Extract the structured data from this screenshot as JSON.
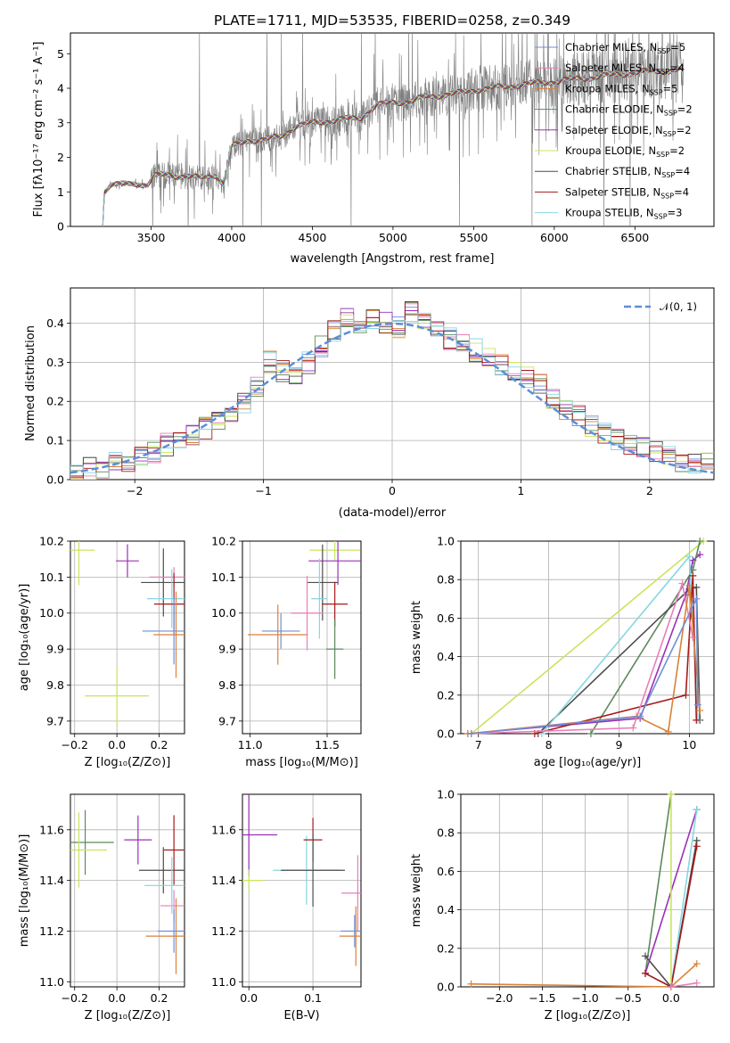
{
  "colors": {
    "chabrier_miles": "#6f8fd8",
    "salpeter_miles": "#e87fba",
    "kroupa_miles": "#d9823a",
    "chabrier_elodie": "#5b8a5b",
    "salpeter_elodie": "#9b30b8",
    "kroupa_elodie": "#c8e55e",
    "chabrier_stelib": "#4d4d4d",
    "salpeter_stelib": "#a51a1a",
    "kroupa_stelib": "#86d6e2",
    "data": "#808080",
    "normal": "#5b8fd8"
  },
  "chart_data": [
    {
      "name": "spectrum",
      "type": "line",
      "title": "PLATE=1711, MJD=53535, FIBERID=0258, z=0.349",
      "xlabel": "wavelength [Angstrom, rest frame]",
      "ylabel": "Flux [fλ10⁻¹⁷ erg cm⁻² s⁻¹ A⁻¹]",
      "xlim": [
        3000,
        6990
      ],
      "ylim": [
        0,
        5.6
      ],
      "xticks": [
        "3500",
        "4000",
        "4500",
        "5000",
        "5500",
        "6000",
        "6500"
      ],
      "yticks": [
        "0",
        "1",
        "2",
        "3",
        "4",
        "5"
      ],
      "legend": [
        {
          "key": "chabrier_miles",
          "label": "Chabrier MILES, N",
          "sub": "SSP",
          "tail": "=5"
        },
        {
          "key": "salpeter_miles",
          "label": "Salpeter MILES, N",
          "sub": "SSP",
          "tail": "=4"
        },
        {
          "key": "kroupa_miles",
          "label": "Kroupa MILES, N",
          "sub": "SSP",
          "tail": "=5"
        },
        {
          "key": "chabrier_elodie",
          "label": "Chabrier ELODIE, N",
          "sub": "SSP",
          "tail": "=2"
        },
        {
          "key": "salpeter_elodie",
          "label": "Salpeter ELODIE, N",
          "sub": "SSP",
          "tail": "=2"
        },
        {
          "key": "kroupa_elodie",
          "label": "Kroupa ELODIE, N",
          "sub": "SSP",
          "tail": "=2"
        },
        {
          "key": "chabrier_stelib",
          "label": "Chabrier STELIB, N",
          "sub": "SSP",
          "tail": "=4"
        },
        {
          "key": "salpeter_stelib",
          "label": "Salpeter STELIB, N",
          "sub": "SSP",
          "tail": "=4"
        },
        {
          "key": "kroupa_stelib",
          "label": "Kroupa STELIB, N",
          "sub": "SSP",
          "tail": "=3"
        }
      ],
      "model_continuum": [
        [
          3200,
          0
        ],
        [
          3210,
          1.0
        ],
        [
          3250,
          1.2
        ],
        [
          3300,
          1.2
        ],
        [
          3400,
          1.25
        ],
        [
          3480,
          1.2
        ],
        [
          3520,
          1.45
        ],
        [
          3600,
          1.5
        ],
        [
          3700,
          1.45
        ],
        [
          3800,
          1.4
        ],
        [
          3900,
          1.5
        ],
        [
          3950,
          1.2
        ],
        [
          4000,
          2.3
        ],
        [
          4100,
          2.5
        ],
        [
          4200,
          2.5
        ],
        [
          4300,
          2.6
        ],
        [
          4400,
          2.9
        ],
        [
          4500,
          3.0
        ],
        [
          4600,
          3.05
        ],
        [
          4700,
          3.1
        ],
        [
          4800,
          3.15
        ],
        [
          4900,
          3.5
        ],
        [
          5000,
          3.6
        ],
        [
          5100,
          3.6
        ],
        [
          5200,
          3.75
        ],
        [
          5300,
          3.8
        ],
        [
          5400,
          3.85
        ],
        [
          5500,
          3.95
        ],
        [
          5600,
          4.0
        ],
        [
          5700,
          4.05
        ],
        [
          5800,
          4.1
        ],
        [
          5900,
          4.15
        ],
        [
          6000,
          4.2
        ],
        [
          6100,
          4.25
        ],
        [
          6200,
          4.3
        ],
        [
          6300,
          4.35
        ],
        [
          6400,
          4.4
        ],
        [
          6500,
          4.45
        ],
        [
          6600,
          4.5
        ],
        [
          6700,
          4.5
        ],
        [
          6800,
          4.55
        ]
      ]
    },
    {
      "name": "residuals",
      "type": "line",
      "xlabel": "(data-model)/error",
      "ylabel": "Normed distribution",
      "xlim": [
        -2.5,
        2.5
      ],
      "ylim": [
        0,
        0.49
      ],
      "xticks": [
        "−2",
        "−1",
        "0",
        "1",
        "2"
      ],
      "yticks": [
        "0.0",
        "0.1",
        "0.2",
        "0.3",
        "0.4"
      ],
      "legend": "𝒩(0, 1)",
      "bin_edges": [
        -2.5,
        -2.4,
        -2.3,
        -2.2,
        -2.1,
        -2.0,
        -1.9,
        -1.8,
        -1.7,
        -1.6,
        -1.5,
        -1.4,
        -1.3,
        -1.2,
        -1.1,
        -1.0,
        -0.9,
        -0.8,
        -0.7,
        -0.6,
        -0.5,
        -0.4,
        -0.3,
        -0.2,
        -0.1,
        0.0,
        0.1,
        0.2,
        0.3,
        0.4,
        0.5,
        0.6,
        0.7,
        0.8,
        0.9,
        1.0,
        1.1,
        1.2,
        1.3,
        1.4,
        1.5,
        1.6,
        1.7,
        1.8,
        1.9,
        2.0,
        2.1,
        2.2,
        2.3,
        2.4,
        2.5
      ],
      "hist_base": [
        0.02,
        0.03,
        0.03,
        0.04,
        0.05,
        0.06,
        0.07,
        0.09,
        0.1,
        0.11,
        0.13,
        0.15,
        0.17,
        0.2,
        0.24,
        0.3,
        0.28,
        0.27,
        0.3,
        0.34,
        0.38,
        0.42,
        0.39,
        0.41,
        0.4,
        0.39,
        0.43,
        0.41,
        0.38,
        0.36,
        0.35,
        0.33,
        0.31,
        0.29,
        0.28,
        0.26,
        0.24,
        0.21,
        0.18,
        0.16,
        0.14,
        0.12,
        0.1,
        0.09,
        0.08,
        0.07,
        0.06,
        0.05,
        0.04,
        0.04
      ]
    },
    {
      "name": "age-vs-Z",
      "type": "scatter",
      "xlabel": "Z [log₁₀(Z/Z⊙)]",
      "ylabel": "age  [log₁₀(age/yr)]",
      "xlim": [
        -0.22,
        0.32
      ],
      "ylim": [
        9.665,
        10.2
      ],
      "xticks": [
        "−0.2",
        "0.0",
        "0.2"
      ],
      "yticks": [
        "9.7",
        "9.8",
        "9.9",
        "10.0",
        "10.1",
        "10.2"
      ],
      "points": [
        {
          "key": "kroupa_elodie",
          "x": -0.18,
          "y": 10.175
        },
        {
          "key": "kroupa_elodie",
          "x": 0.0,
          "y": 9.77
        },
        {
          "key": "salpeter_elodie",
          "x": 0.05,
          "y": 10.145
        },
        {
          "key": "chabrier_stelib",
          "x": 0.22,
          "y": 10.085
        },
        {
          "key": "salpeter_miles",
          "x": 0.27,
          "y": 10.1
        },
        {
          "key": "kroupa_stelib",
          "x": 0.26,
          "y": 10.04
        },
        {
          "key": "salpeter_stelib",
          "x": 0.27,
          "y": 10.025
        },
        {
          "key": "chabrier_miles",
          "x": 0.27,
          "y": 9.95
        },
        {
          "key": "kroupa_miles",
          "x": 0.28,
          "y": 9.94
        }
      ]
    },
    {
      "name": "age-vs-mass",
      "type": "scatter",
      "xlabel": "mass [log₁₀(M/M⊙)]",
      "xlim": [
        10.95,
        11.72
      ],
      "ylim": [
        9.665,
        10.2
      ],
      "xticks": [
        "11.0",
        "11.5"
      ],
      "yticks": [
        "9.7",
        "9.8",
        "9.9",
        "10.0",
        "10.1",
        "10.2"
      ],
      "points": [
        {
          "key": "kroupa_elodie",
          "x": 11.55,
          "y": 10.175
        },
        {
          "key": "salpeter_elodie",
          "x": 11.57,
          "y": 10.145
        },
        {
          "key": "chabrier_stelib",
          "x": 11.47,
          "y": 10.085
        },
        {
          "key": "kroupa_stelib",
          "x": 11.45,
          "y": 10.04
        },
        {
          "key": "salpeter_stelib",
          "x": 11.55,
          "y": 10.025
        },
        {
          "key": "chabrier_miles",
          "x": 11.2,
          "y": 9.95
        },
        {
          "key": "kroupa_miles",
          "x": 11.18,
          "y": 9.94
        },
        {
          "key": "salpeter_miles",
          "x": 11.37,
          "y": 10.0
        },
        {
          "key": "chabrier_elodie",
          "x": 11.55,
          "y": 9.9
        }
      ]
    },
    {
      "name": "weight-vs-age",
      "type": "line",
      "xlabel": "age  [log₁₀(age/yr)]",
      "ylabel": "mass weight",
      "xlim": [
        6.75,
        10.35
      ],
      "ylim": [
        0,
        1
      ],
      "xticks": [
        "7",
        "8",
        "9",
        "10"
      ],
      "yticks": [
        "0.0",
        "0.2",
        "0.4",
        "0.6",
        "0.8",
        "1.0"
      ],
      "series": [
        {
          "key": "kroupa_elodie",
          "points": [
            [
              6.9,
              0
            ],
            [
              10.2,
              1.0
            ]
          ]
        },
        {
          "key": "salpeter_elodie",
          "points": [
            [
              6.85,
              0
            ],
            [
              9.3,
              0.08
            ],
            [
              9.95,
              0.72
            ],
            [
              10.05,
              0.9
            ],
            [
              10.15,
              0.93
            ]
          ]
        },
        {
          "key": "chabrier_elodie",
          "points": [
            [
              8.6,
              0
            ],
            [
              10.05,
              0.85
            ],
            [
              10.15,
              1.0
            ]
          ]
        },
        {
          "key": "chabrier_stelib",
          "points": [
            [
              7.85,
              0
            ],
            [
              10.0,
              0.75
            ],
            [
              10.1,
              0.76
            ],
            [
              10.15,
              0.07
            ]
          ]
        },
        {
          "key": "kroupa_stelib",
          "points": [
            [
              7.9,
              0
            ],
            [
              10.0,
              0.92
            ],
            [
              10.12,
              0.07
            ]
          ]
        },
        {
          "key": "salpeter_stelib",
          "points": [
            [
              7.8,
              0
            ],
            [
              9.95,
              0.2
            ],
            [
              10.05,
              0.82
            ],
            [
              10.1,
              0.07
            ]
          ]
        },
        {
          "key": "salpeter_miles",
          "points": [
            [
              6.9,
              0
            ],
            [
              9.2,
              0.03
            ],
            [
              9.9,
              0.78
            ],
            [
              10.05,
              0.5
            ]
          ]
        },
        {
          "key": "kroupa_miles",
          "points": [
            [
              6.85,
              0
            ],
            [
              9.25,
              0.09
            ],
            [
              9.7,
              0.01
            ],
            [
              10.0,
              0.77
            ],
            [
              10.15,
              0.12
            ]
          ]
        },
        {
          "key": "chabrier_miles",
          "points": [
            [
              6.9,
              0
            ],
            [
              9.3,
              0.09
            ],
            [
              10.1,
              0.7
            ],
            [
              10.12,
              0.15
            ]
          ]
        }
      ]
    },
    {
      "name": "mass-vs-Z",
      "type": "scatter",
      "xlabel": "Z [log₁₀(Z/Z⊙)]",
      "ylabel": "mass [log₁₀(M/M⊙)]",
      "xlim": [
        -0.22,
        0.32
      ],
      "ylim": [
        10.98,
        11.74
      ],
      "xticks": [
        "−0.2",
        "0.0",
        "0.2"
      ],
      "yticks": [
        "11.0",
        "11.2",
        "11.4",
        "11.6"
      ],
      "points": [
        {
          "key": "chabrier_elodie",
          "x": -0.15,
          "y": 11.55
        },
        {
          "key": "kroupa_elodie",
          "x": -0.18,
          "y": 11.52
        },
        {
          "key": "salpeter_elodie",
          "x": 0.1,
          "y": 11.56
        },
        {
          "key": "chabrier_stelib",
          "x": 0.22,
          "y": 11.44
        },
        {
          "key": "salpeter_stelib",
          "x": 0.27,
          "y": 11.52
        },
        {
          "key": "salpeter_miles",
          "x": 0.27,
          "y": 11.3
        },
        {
          "key": "chabrier_miles",
          "x": 0.27,
          "y": 11.2
        },
        {
          "key": "kroupa_miles",
          "x": 0.28,
          "y": 11.18
        },
        {
          "key": "kroupa_stelib",
          "x": 0.26,
          "y": 11.38
        }
      ]
    },
    {
      "name": "mass-vs-EBV",
      "type": "scatter",
      "xlabel": "E(B-V)",
      "xlim": [
        -0.01,
        0.175
      ],
      "ylim": [
        10.98,
        11.74
      ],
      "xticks": [
        "0.0",
        "0.1"
      ],
      "yticks": [
        "11.0",
        "11.2",
        "11.4",
        "11.6"
      ],
      "points": [
        {
          "key": "salpeter_elodie",
          "x": 0.0,
          "y": 11.58
        },
        {
          "key": "kroupa_elodie",
          "x": 0.0,
          "y": 11.4
        },
        {
          "key": "kroupa_stelib",
          "x": 0.09,
          "y": 11.44
        },
        {
          "key": "salpeter_stelib",
          "x": 0.1,
          "y": 11.56
        },
        {
          "key": "chabrier_stelib",
          "x": 0.1,
          "y": 11.44
        },
        {
          "key": "chabrier_miles",
          "x": 0.165,
          "y": 11.2
        },
        {
          "key": "kroupa_miles",
          "x": 0.167,
          "y": 11.18
        },
        {
          "key": "salpeter_miles",
          "x": 0.17,
          "y": 11.35
        }
      ]
    },
    {
      "name": "weight-vs-Z",
      "type": "line",
      "xlabel": "Z [log₁₀(Z/Z⊙)]",
      "ylabel": "mass weight",
      "xlim": [
        -2.45,
        0.5
      ],
      "ylim": [
        0,
        1
      ],
      "xticks": [
        "−2.0",
        "−1.5",
        "−1.0",
        "−0.5",
        "0.0"
      ],
      "yticks": [
        "0.0",
        "0.2",
        "0.4",
        "0.6",
        "0.8",
        "1.0"
      ],
      "series": [
        {
          "key": "kroupa_miles",
          "points": [
            [
              -2.33,
              0.015
            ],
            [
              0.0,
              0.0
            ],
            [
              0.3,
              0.12
            ]
          ]
        },
        {
          "key": "chabrier_elodie",
          "points": [
            [
              -0.3,
              0.07
            ],
            [
              0.0,
              1.0
            ]
          ]
        },
        {
          "key": "salpeter_elodie",
          "points": [
            [
              -0.3,
              0.07
            ],
            [
              0.3,
              0.92
            ]
          ]
        },
        {
          "key": "chabrier_stelib",
          "points": [
            [
              -0.3,
              0.16
            ],
            [
              0.0,
              0.0
            ],
            [
              0.3,
              0.76
            ]
          ]
        },
        {
          "key": "kroupa_stelib",
          "points": [
            [
              -0.3,
              0.07
            ],
            [
              0.0,
              0.0
            ],
            [
              0.3,
              0.92
            ]
          ]
        },
        {
          "key": "salpeter_stelib",
          "points": [
            [
              -0.3,
              0.07
            ],
            [
              0.0,
              0.0
            ],
            [
              0.3,
              0.73
            ]
          ]
        },
        {
          "key": "kroupa_elodie",
          "points": [
            [
              0.0,
              0.0
            ],
            [
              0.0,
              1.0
            ]
          ]
        },
        {
          "key": "salpeter_miles",
          "points": [
            [
              0.0,
              0.0
            ],
            [
              0.3,
              0.02
            ]
          ]
        }
      ]
    }
  ]
}
